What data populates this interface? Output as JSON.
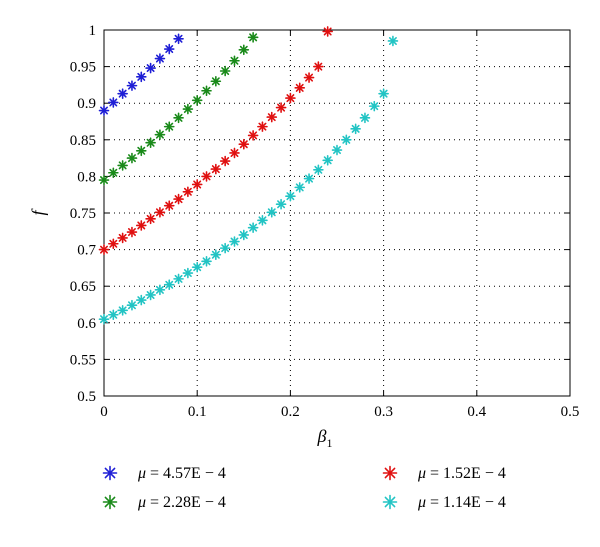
{
  "chart_data": {
    "type": "scatter",
    "xlabel": "β",
    "xlabel_sub": "1",
    "ylabel": "f",
    "xlim": [
      0,
      0.5
    ],
    "ylim": [
      0.5,
      1
    ],
    "xticks": [
      "0",
      "0.1",
      "0.2",
      "0.3",
      "0.4",
      "0.5"
    ],
    "yticks": [
      "0.5",
      "0.55",
      "0.6",
      "0.65",
      "0.7",
      "0.75",
      "0.8",
      "0.85",
      "0.9",
      "0.95",
      "1"
    ],
    "grid": true,
    "legend_position": "below",
    "series": [
      {
        "name": "μ = 4.57E − 4",
        "color": "#1f1fd6",
        "marker": "asterisk",
        "x": [
          0,
          0.01,
          0.02,
          0.03,
          0.04,
          0.05,
          0.06,
          0.07,
          0.08
        ],
        "y": [
          0.89,
          0.901,
          0.913,
          0.924,
          0.936,
          0.948,
          0.961,
          0.974,
          0.988
        ]
      },
      {
        "name": "μ = 2.28E − 4",
        "color": "#1a8a1a",
        "marker": "asterisk",
        "x": [
          0,
          0.01,
          0.02,
          0.03,
          0.04,
          0.05,
          0.06,
          0.07,
          0.08,
          0.09,
          0.1,
          0.11,
          0.12,
          0.13,
          0.14,
          0.15,
          0.16
        ],
        "y": [
          0.795,
          0.805,
          0.815,
          0.825,
          0.835,
          0.846,
          0.857,
          0.868,
          0.88,
          0.892,
          0.904,
          0.917,
          0.93,
          0.944,
          0.958,
          0.973,
          0.99
        ]
      },
      {
        "name": "μ = 1.52E − 4",
        "color": "#e01010",
        "marker": "asterisk",
        "x": [
          0,
          0.01,
          0.02,
          0.03,
          0.04,
          0.05,
          0.06,
          0.07,
          0.08,
          0.09,
          0.1,
          0.11,
          0.12,
          0.13,
          0.14,
          0.15,
          0.16,
          0.17,
          0.18,
          0.19,
          0.2,
          0.21,
          0.22,
          0.23,
          0.24
        ],
        "y": [
          0.7,
          0.708,
          0.716,
          0.724,
          0.733,
          0.742,
          0.751,
          0.76,
          0.769,
          0.779,
          0.789,
          0.8,
          0.81,
          0.821,
          0.832,
          0.844,
          0.856,
          0.868,
          0.881,
          0.894,
          0.907,
          0.921,
          0.935,
          0.95,
          0.998
        ]
      },
      {
        "name": "μ = 1.14E − 4",
        "color": "#22c4c4",
        "marker": "asterisk",
        "x": [
          0,
          0.01,
          0.02,
          0.03,
          0.04,
          0.05,
          0.06,
          0.07,
          0.08,
          0.09,
          0.1,
          0.11,
          0.12,
          0.13,
          0.14,
          0.15,
          0.16,
          0.17,
          0.18,
          0.19,
          0.2,
          0.21,
          0.22,
          0.23,
          0.24,
          0.25,
          0.26,
          0.27,
          0.28,
          0.29,
          0.3,
          0.31
        ],
        "y": [
          0.605,
          0.611,
          0.617,
          0.624,
          0.631,
          0.638,
          0.645,
          0.652,
          0.66,
          0.668,
          0.676,
          0.684,
          0.693,
          0.702,
          0.711,
          0.72,
          0.73,
          0.74,
          0.751,
          0.762,
          0.773,
          0.785,
          0.797,
          0.809,
          0.822,
          0.836,
          0.85,
          0.865,
          0.88,
          0.896,
          0.913,
          0.985
        ]
      }
    ],
    "legend": {
      "entries": [
        {
          "label_symbol": "μ",
          "label_rest": " = 4.57E − 4",
          "color": "#1f1fd6"
        },
        {
          "label_symbol": "μ",
          "label_rest": " = 1.52E − 4",
          "color": "#e01010"
        },
        {
          "label_symbol": "μ",
          "label_rest": " = 2.28E − 4",
          "color": "#1a8a1a"
        },
        {
          "label_symbol": "μ",
          "label_rest": " = 1.14E − 4",
          "color": "#22c4c4"
        }
      ]
    }
  }
}
